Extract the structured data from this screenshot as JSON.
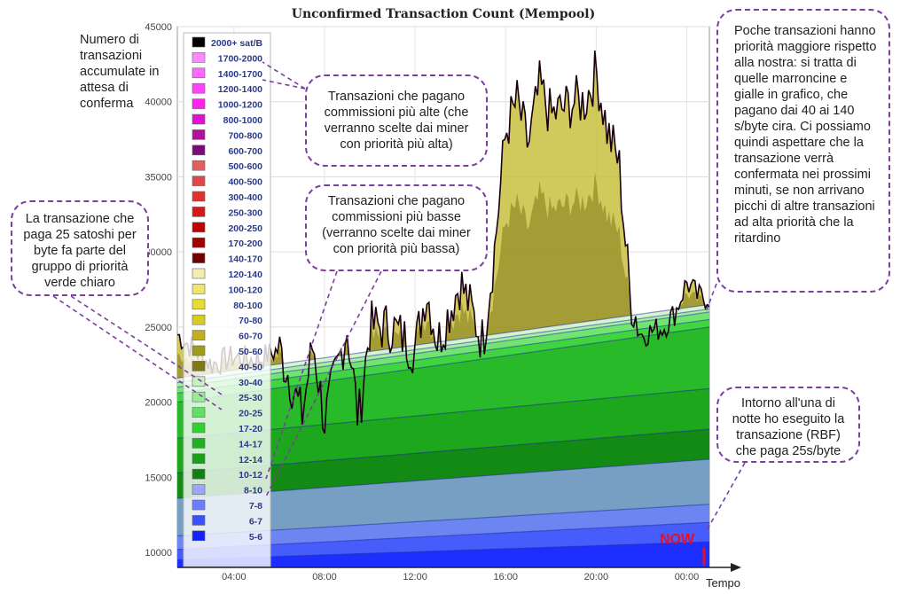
{
  "chart_data": {
    "type": "area",
    "title": "Unconfirmed Transaction Count (Mempool)",
    "xlabel": "Tempo",
    "ylim": [
      9000,
      45000
    ],
    "y_ticks": [
      "10000",
      "15000",
      "20000",
      "25000",
      "30000",
      "35000",
      "40000",
      "45000"
    ],
    "x_ticks": [
      "04:00",
      "08:00",
      "12:00",
      "16:00",
      "20:00",
      "00:00"
    ],
    "stacked": true,
    "legend_position": "left-inside",
    "legend": [
      {
        "label": "2000+ sat/B",
        "color": "#000000"
      },
      {
        "label": "1700-2000",
        "color": "#ff88ff"
      },
      {
        "label": "1400-1700",
        "color": "#ff66ff"
      },
      {
        "label": "1200-1400",
        "color": "#ff44ff"
      },
      {
        "label": "1000-1200",
        "color": "#ff22ee"
      },
      {
        "label": "800-1000",
        "color": "#e010d0"
      },
      {
        "label": "700-800",
        "color": "#b0109a"
      },
      {
        "label": "600-700",
        "color": "#7a0a78"
      },
      {
        "label": "500-600",
        "color": "#e06060"
      },
      {
        "label": "400-500",
        "color": "#e04848"
      },
      {
        "label": "300-400",
        "color": "#e03030"
      },
      {
        "label": "250-300",
        "color": "#d81818"
      },
      {
        "label": "200-250",
        "color": "#c00000"
      },
      {
        "label": "170-200",
        "color": "#a00000"
      },
      {
        "label": "140-170",
        "color": "#700000"
      },
      {
        "label": "120-140",
        "color": "#f2eeb0"
      },
      {
        "label": "100-120",
        "color": "#eee470"
      },
      {
        "label": "80-100",
        "color": "#e8dc30"
      },
      {
        "label": "70-80",
        "color": "#d8cc20"
      },
      {
        "label": "60-70",
        "color": "#c0b020"
      },
      {
        "label": "50-60",
        "color": "#a09a20"
      },
      {
        "label": "40-50",
        "color": "#807818"
      },
      {
        "label": "30-40",
        "color": "#c8f0c0"
      },
      {
        "label": "25-30",
        "color": "#98ec98"
      },
      {
        "label": "20-25",
        "color": "#60e060"
      },
      {
        "label": "17-20",
        "color": "#30d030"
      },
      {
        "label": "14-17",
        "color": "#20b020"
      },
      {
        "label": "12-14",
        "color": "#18a018"
      },
      {
        "label": "10-12",
        "color": "#108010"
      },
      {
        "label": "8-10",
        "color": "#9aa6ff"
      },
      {
        "label": "7-8",
        "color": "#6a7cff"
      },
      {
        "label": "6-7",
        "color": "#3a50ff"
      },
      {
        "label": "5-6",
        "color": "#1020ff"
      }
    ],
    "total_series": {
      "x_hours": [
        1.5,
        3,
        4,
        5,
        6,
        6.5,
        7,
        7.5,
        8,
        9,
        9.5,
        10,
        11,
        12,
        12.5,
        13,
        14,
        15,
        15.5,
        16,
        16.5,
        17,
        17.5,
        18,
        19,
        19.5,
        20,
        20.5,
        21,
        21.5,
        22,
        23,
        23.5,
        24,
        24.5,
        25
      ],
      "values": [
        24500,
        22500,
        23000,
        22800,
        23500,
        21500,
        19000,
        24000,
        18700,
        25000,
        18700,
        25000,
        25000,
        23500,
        27500,
        24000,
        28000,
        24000,
        30000,
        38000,
        40000,
        37000,
        41000,
        39000,
        40000,
        40000,
        42000,
        38000,
        36000,
        27000,
        24500,
        25000,
        26000,
        28000,
        27000,
        27000
      ]
    },
    "band_tops_at_end": {
      "5-6": 10700,
      "6-7": 12000,
      "7-8": 13200,
      "8-10": 16200,
      "10-12": 18200,
      "12-14": 20900,
      "14-17": 25000,
      "17-20": 25500,
      "20-25": 26000,
      "25-30": 26200,
      "30-40": 26500
    },
    "annotations": {
      "now_label": "NOW"
    }
  },
  "notes": {
    "y_axis_note": "Numero di transazioni accumulate in attesa di conferma",
    "high_fee": "Transazioni che pagano commissioni più alte (che verranno scelte dai miner con priorità più alta)",
    "low_fee": "Transazioni che pagano commissioni più basse (verranno scelte dai miner con priorità più bassa)",
    "green_group": "La transazione che paga 25 satoshi per byte fa parte del gruppo di priorità verde chiaro",
    "right_note": "Poche transazioni hanno priorità maggiore rispetto alla nostra: si tratta di quelle marroncine e gialle in grafico, che pagano dai 40 ai 140 s/byte cira. Ci possiamo quindi aspettare che la transazione verrà confermata nei prossimi minuti, se non arrivano picchi di altre transazioni ad alta priorità che la ritardino",
    "rbf_note": "Intorno all'una di notte ho eseguito la transazione (RBF) che paga 25s/byte"
  },
  "colors": {
    "callout_border": "#7b3fa0",
    "now_color": "#e0102a",
    "total_line": "#1a0010"
  }
}
